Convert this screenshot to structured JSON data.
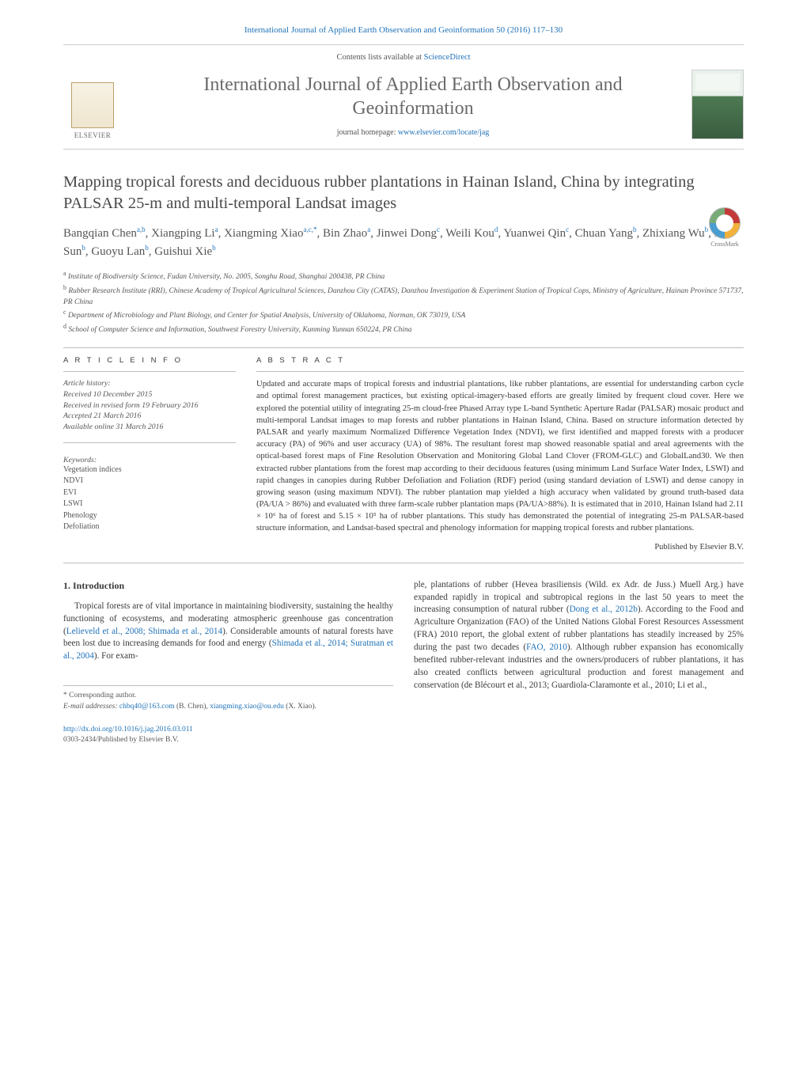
{
  "header": {
    "citation": "International Journal of Applied Earth Observation and Geoinformation 50 (2016) 117–130",
    "contents_prefix": "Contents lists available at ",
    "contents_link": "ScienceDirect",
    "journal_title": "International Journal of Applied Earth Observation and Geoinformation",
    "homepage_prefix": "journal homepage: ",
    "homepage_link": "www.elsevier.com/locate/jag",
    "elsevier": "ELSEVIER",
    "crossmark": "CrossMark"
  },
  "article": {
    "title": "Mapping tropical forests and deciduous rubber plantations in Hainan Island, China by integrating PALSAR 25-m and multi-temporal Landsat images",
    "authors_html": "Bangqian Chen<sup>a,b</sup>, Xiangping Li<sup>a</sup>, Xiangming Xiao<sup>a,c,*</sup>, Bin Zhao<sup>a</sup>, Jinwei Dong<sup>c</sup>, Weili Kou<sup>d</sup>, Yuanwei Qin<sup>c</sup>, Chuan Yang<sup>b</sup>, Zhixiang Wu<sup>b</sup>, Rui Sun<sup>b</sup>, Guoyu Lan<sup>b</sup>, Guishui Xie<sup>b</sup>",
    "affiliations": {
      "a": "Institute of Biodiversity Science, Fudan University, No. 2005, Songhu Road, Shanghai 200438, PR China",
      "b": "Rubber Research Institute (RRI), Chinese Academy of Tropical Agricultural Sciences, Danzhou City (CATAS), Danzhou Investigation & Experiment Station of Tropical Cops, Ministry of Agriculture, Hainan Province 571737, PR China",
      "c": "Department of Microbiology and Plant Biology, and Center for Spatial Analysis, University of Oklahoma, Norman, OK 73019, USA",
      "d": "School of Computer Science and Information, Southwest Forestry University, Kunming Yunnan 650224, PR China"
    }
  },
  "info": {
    "heading": "A R T I C L E   I N F O",
    "history_label": "Article history:",
    "received": "Received 10 December 2015",
    "revised": "Received in revised form 19 February 2016",
    "accepted": "Accepted 21 March 2016",
    "online": "Available online 31 March 2016",
    "keywords_label": "Keywords:",
    "keywords": [
      "Vegetation indices",
      "NDVI",
      "EVI",
      "LSWI",
      "Phenology",
      "Defoliation"
    ]
  },
  "abstract": {
    "heading": "A B S T R A C T",
    "text": "Updated and accurate maps of tropical forests and industrial plantations, like rubber plantations, are essential for understanding carbon cycle and optimal forest management practices, but existing optical-imagery-based efforts are greatly limited by frequent cloud cover. Here we explored the potential utility of integrating 25-m cloud-free Phased Array type L-band Synthetic Aperture Radar (PALSAR) mosaic product and multi-temporal Landsat images to map forests and rubber plantations in Hainan Island, China. Based on structure information detected by PALSAR and yearly maximum Normalized Difference Vegetation Index (NDVI), we first identified and mapped forests with a producer accuracy (PA) of 96% and user accuracy (UA) of 98%. The resultant forest map showed reasonable spatial and areal agreements with the optical-based forest maps of Fine Resolution Observation and Monitoring Global Land Clover (FROM-GLC) and GlobalLand30. We then extracted rubber plantations from the forest map according to their deciduous features (using minimum Land Surface Water Index, LSWI) and rapid changes in canopies during Rubber Defoliation and Foliation (RDF) period (using standard deviation of LSWI) and dense canopy in growing season (using maximum NDVI). The rubber plantation map yielded a high accuracy when validated by ground truth-based data (PA/UA > 86%) and evaluated with three farm-scale rubber plantation maps (PA/UA>88%). It is estimated that in 2010, Hainan Island had 2.11 × 10⁶ ha of forest and 5.15 × 10⁵ ha of rubber plantations. This study has demonstrated the potential of integrating 25-m PALSAR-based structure information, and Landsat-based spectral and phenology information for mapping tropical forests and rubber plantations.",
    "publisher_note": "Published by Elsevier B.V."
  },
  "body": {
    "section_number": "1.",
    "section_title": "Introduction",
    "col1": "Tropical forests are of vital importance in maintaining biodiversity, sustaining the healthy functioning of ecosystems, and moderating atmospheric greenhouse gas concentration (Lelieveld et al., 2008; Shimada et al., 2014). Considerable amounts of natural forests have been lost due to increasing demands for food and energy (Shimada et al., 2014; Suratman et al., 2004). For exam-",
    "col2": "ple, plantations of rubber (Hevea brasiliensis (Wild. ex Adr. de Juss.) Muell Arg.) have expanded rapidly in tropical and subtropical regions in the last 50 years to meet the increasing consumption of natural rubber (Dong et al., 2012b). According to the Food and Agriculture Organization (FAO) of the United Nations Global Forest Resources Assessment (FRA) 2010 report, the global extent of rubber plantations has steadily increased by 25% during the past two decades (FAO, 2010). Although rubber expansion has economically benefited rubber-relevant industries and the owners/producers of rubber plantations, it has also created conflicts between agricultural production and forest management and conservation (de Blécourt et al., 2013; Guardiola-Claramonte et al., 2010; Li et al.,"
  },
  "footnotes": {
    "corresponding": "* Corresponding author.",
    "emails_label": "E-mail addresses: ",
    "email1": "chbq40@163.com",
    "email1_owner": " (B. Chen), ",
    "email2": "xiangming.xiao@ou.edu",
    "email2_owner": " (X. Xiao)."
  },
  "footer": {
    "doi": "http://dx.doi.org/10.1016/j.jag.2016.03.011",
    "issn_line": "0303-2434/Published by Elsevier B.V."
  },
  "colors": {
    "link": "#2173b8",
    "text": "#3a3a3a",
    "muted": "#555555",
    "rule": "#bdbdbd"
  }
}
